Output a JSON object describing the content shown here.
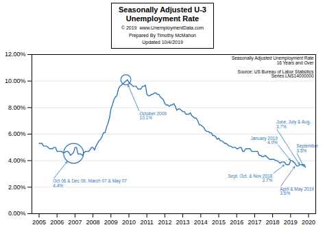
{
  "chart_data": {
    "type": "line",
    "title": "Seasonally Adjusted U-3\nUnemployment Rate",
    "subtitle": "© 2019  www.UnemploymentData.com\nPrepared By Timothy McMahon\nUpdated 10/4/2019",
    "color": "#2e75b6",
    "xlim": [
      2004.6,
      2020.4
    ],
    "xticks": [
      2005,
      2006,
      2007,
      2008,
      2009,
      2010,
      2011,
      2012,
      2013,
      2014,
      2015,
      2016,
      2017,
      2018,
      2019,
      2020
    ],
    "ylim": [
      0,
      0.12
    ],
    "yticks": [
      {
        "value": 0.0,
        "label": "0.00%"
      },
      {
        "value": 0.02,
        "label": "2.00%"
      },
      {
        "value": 0.04,
        "label": "4.00%"
      },
      {
        "value": 0.06,
        "label": "6.00%"
      },
      {
        "value": 0.08,
        "label": "8.00%"
      },
      {
        "value": 0.1,
        "label": "10.00%"
      },
      {
        "value": 0.12,
        "label": "12.00%"
      }
    ],
    "grid": true,
    "x": [
      2005.0,
      2005.083,
      2005.167,
      2005.25,
      2005.333,
      2005.417,
      2005.5,
      2005.583,
      2005.667,
      2005.75,
      2005.833,
      2005.917,
      2006.0,
      2006.083,
      2006.167,
      2006.25,
      2006.333,
      2006.417,
      2006.5,
      2006.583,
      2006.667,
      2006.75,
      2006.833,
      2006.917,
      2007.0,
      2007.083,
      2007.167,
      2007.25,
      2007.333,
      2007.417,
      2007.5,
      2007.583,
      2007.667,
      2007.75,
      2007.833,
      2007.917,
      2008.0,
      2008.083,
      2008.167,
      2008.25,
      2008.333,
      2008.417,
      2008.5,
      2008.583,
      2008.667,
      2008.75,
      2008.833,
      2008.917,
      2009.0,
      2009.083,
      2009.167,
      2009.25,
      2009.333,
      2009.417,
      2009.5,
      2009.583,
      2009.667,
      2009.75,
      2009.833,
      2009.917,
      2010.0,
      2010.083,
      2010.167,
      2010.25,
      2010.333,
      2010.417,
      2010.5,
      2010.583,
      2010.667,
      2010.75,
      2010.833,
      2010.917,
      2011.0,
      2011.083,
      2011.167,
      2011.25,
      2011.333,
      2011.417,
      2011.5,
      2011.583,
      2011.667,
      2011.75,
      2011.833,
      2011.917,
      2012.0,
      2012.083,
      2012.167,
      2012.25,
      2012.333,
      2012.417,
      2012.5,
      2012.583,
      2012.667,
      2012.75,
      2012.833,
      2012.917,
      2013.0,
      2013.083,
      2013.167,
      2013.25,
      2013.333,
      2013.417,
      2013.5,
      2013.583,
      2013.667,
      2013.75,
      2013.833,
      2013.917,
      2014.0,
      2014.083,
      2014.167,
      2014.25,
      2014.333,
      2014.417,
      2014.5,
      2014.583,
      2014.667,
      2014.75,
      2014.833,
      2014.917,
      2015.0,
      2015.083,
      2015.167,
      2015.25,
      2015.333,
      2015.417,
      2015.5,
      2015.583,
      2015.667,
      2015.75,
      2015.833,
      2015.917,
      2016.0,
      2016.083,
      2016.167,
      2016.25,
      2016.333,
      2016.417,
      2016.5,
      2016.583,
      2016.667,
      2016.75,
      2016.833,
      2016.917,
      2017.0,
      2017.083,
      2017.167,
      2017.25,
      2017.333,
      2017.417,
      2017.5,
      2017.583,
      2017.667,
      2017.75,
      2017.833,
      2017.917,
      2018.0,
      2018.083,
      2018.167,
      2018.25,
      2018.333,
      2018.417,
      2018.5,
      2018.583,
      2018.667,
      2018.75,
      2018.833,
      2018.917,
      2019.0,
      2019.083,
      2019.167,
      2019.25,
      2019.333,
      2019.417,
      2019.5,
      2019.583,
      2019.667,
      2019.75,
      2019.833
    ],
    "values": [
      0.053,
      0.053,
      0.053,
      0.051,
      0.051,
      0.051,
      0.05,
      0.049,
      0.049,
      0.049,
      0.05,
      0.05,
      0.047,
      0.047,
      0.047,
      0.047,
      0.046,
      0.046,
      0.047,
      0.047,
      0.046,
      0.044,
      0.045,
      0.046,
      0.05,
      0.05,
      0.045,
      0.045,
      0.045,
      0.044,
      0.046,
      0.047,
      0.047,
      0.047,
      0.048,
      0.05,
      0.05,
      0.048,
      0.051,
      0.053,
      0.055,
      0.056,
      0.058,
      0.061,
      0.061,
      0.065,
      0.068,
      0.072,
      0.079,
      0.082,
      0.086,
      0.088,
      0.089,
      0.094,
      0.096,
      0.097,
      0.098,
      0.099,
      0.1,
      0.101,
      0.099,
      0.098,
      0.097,
      0.096,
      0.096,
      0.096,
      0.094,
      0.094,
      0.094,
      0.096,
      0.096,
      0.097,
      0.09,
      0.089,
      0.089,
      0.09,
      0.09,
      0.091,
      0.091,
      0.09,
      0.09,
      0.088,
      0.087,
      0.086,
      0.083,
      0.082,
      0.082,
      0.081,
      0.082,
      0.082,
      0.083,
      0.081,
      0.078,
      0.079,
      0.079,
      0.078,
      0.077,
      0.077,
      0.075,
      0.075,
      0.075,
      0.076,
      0.074,
      0.073,
      0.072,
      0.072,
      0.07,
      0.067,
      0.067,
      0.066,
      0.065,
      0.063,
      0.062,
      0.062,
      0.061,
      0.061,
      0.059,
      0.059,
      0.058,
      0.056,
      0.057,
      0.055,
      0.055,
      0.054,
      0.053,
      0.053,
      0.052,
      0.051,
      0.051,
      0.05,
      0.05,
      0.05,
      0.049,
      0.049,
      0.05,
      0.05,
      0.047,
      0.047,
      0.049,
      0.049,
      0.049,
      0.049,
      0.047,
      0.047,
      0.047,
      0.047,
      0.047,
      0.044,
      0.044,
      0.043,
      0.043,
      0.044,
      0.043,
      0.042,
      0.041,
      0.041,
      0.041,
      0.041,
      0.04,
      0.04,
      0.039,
      0.038,
      0.039,
      0.039,
      0.039,
      0.037,
      0.037,
      0.037,
      0.04,
      0.04,
      0.039,
      0.038,
      0.036,
      0.036,
      0.037,
      0.037,
      0.037,
      0.037,
      0.035
    ],
    "annotations": [
      {
        "text": "Seasonally Adjusted Unemployment Rate\n16 Years and Over\n\nSource: US Bureau of Labor Statisitics\nSeries LNS14000000"
      },
      {
        "text": "October 2009\n10.1%",
        "x": 2009.83,
        "y": 0.101,
        "color": "#2e75b6",
        "marker": "circle"
      },
      {
        "text": "Oct 06 & Dec 06, March 07 & May 07\n4.4%",
        "x": 2006.92,
        "y": 0.0455,
        "color": "#2e75b6",
        "marker": "circle"
      },
      {
        "text": "Sept. Oct. & Nov 2018\n3.7%",
        "x": 2018.67,
        "y": 0.037,
        "color": "#2e75b6"
      },
      {
        "text": "April & May 2019\n3.6%",
        "x": 2019.25,
        "y": 0.036,
        "color": "#2e75b6"
      },
      {
        "text": "January 2019\n4.0%",
        "x": 2019.0,
        "y": 0.04,
        "color": "#2e75b6"
      },
      {
        "text": "June, July & Aug.\n3.7%",
        "x": 2019.5,
        "y": 0.037,
        "color": "#2e75b6"
      },
      {
        "text": "September\n3.5%",
        "x": 2019.75,
        "y": 0.035,
        "color": "#2e75b6"
      }
    ]
  }
}
